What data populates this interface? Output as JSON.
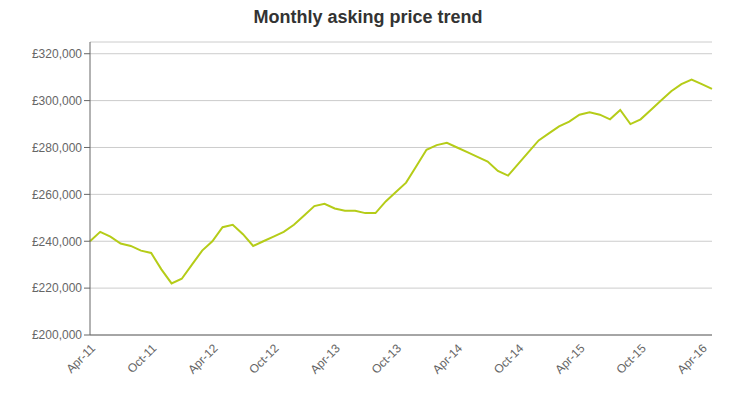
{
  "chart_data": {
    "type": "line",
    "title": "Monthly asking price trend",
    "categories": [
      "Apr-11",
      null,
      null,
      null,
      null,
      null,
      "Oct-11",
      null,
      null,
      null,
      null,
      null,
      "Apr-12",
      null,
      null,
      null,
      null,
      null,
      "Oct-12",
      null,
      null,
      null,
      null,
      null,
      "Apr-13",
      null,
      null,
      null,
      null,
      null,
      "Oct-13",
      null,
      null,
      null,
      null,
      null,
      "Apr-14",
      null,
      null,
      null,
      null,
      null,
      "Oct-14",
      null,
      null,
      null,
      null,
      null,
      "Apr-15",
      null,
      null,
      null,
      null,
      null,
      "Oct-15",
      null,
      null,
      null,
      null,
      null,
      "Apr-16",
      null
    ],
    "values": [
      240000,
      244000,
      242000,
      239000,
      238000,
      236000,
      235000,
      228000,
      222000,
      224000,
      230000,
      236000,
      240000,
      246000,
      247000,
      243000,
      238000,
      240000,
      242000,
      244000,
      247000,
      251000,
      255000,
      256000,
      254000,
      253000,
      253000,
      252000,
      252000,
      257000,
      261000,
      265000,
      272000,
      279000,
      281000,
      282000,
      280000,
      278000,
      276000,
      274000,
      270000,
      268000,
      273000,
      278000,
      283000,
      286000,
      289000,
      291000,
      294000,
      295000,
      294000,
      292000,
      296000,
      290000,
      292000,
      296000,
      300000,
      304000,
      307000,
      309000,
      307000,
      305000
    ],
    "color": "#b5cc18",
    "ylim": [
      200000,
      325000
    ],
    "yticks": [
      {
        "value": 200000,
        "label": "£200,000"
      },
      {
        "value": 220000,
        "label": "£220,000"
      },
      {
        "value": 240000,
        "label": "£240,000"
      },
      {
        "value": 260000,
        "label": "£260,000"
      },
      {
        "value": 280000,
        "label": "£280,000"
      },
      {
        "value": 300000,
        "label": "£300,000"
      },
      {
        "value": 320000,
        "label": "£320,000"
      }
    ],
    "grid": true
  }
}
